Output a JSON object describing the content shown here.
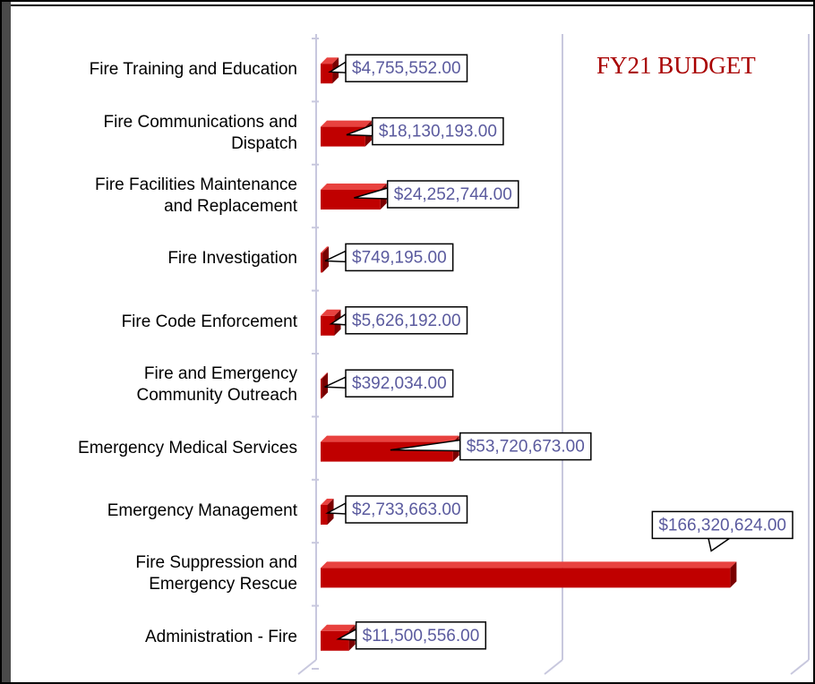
{
  "chart_data": {
    "type": "barh",
    "annotation": "FY21 BUDGET",
    "categories": [
      "Fire Training and Education",
      "Fire Communications and\nDispatch",
      "Fire Facilities Maintenance\nand Replacement",
      "Fire Investigation",
      "Fire Code Enforcement",
      "Fire and Emergency\nCommunity Outreach",
      "Emergency Medical Services",
      "Emergency Management",
      "Fire Suppression and\nEmergency Rescue",
      "Administration - Fire"
    ],
    "values": [
      4755552,
      18130193,
      24252744,
      749195,
      5626192,
      392034,
      53720673,
      2733663,
      166320624,
      11500556
    ],
    "value_labels": [
      "$4,755,552.00",
      "$18,130,193.00",
      "$24,252,744.00",
      "$749,195.00",
      "$5,626,192.00",
      "$392,034.00",
      "$53,720,673.00",
      "$2,733,663.00",
      "$166,320,624.00",
      "$11,500,556.00"
    ],
    "color": "#c00000",
    "xlim": [
      0,
      200000000
    ],
    "xticks": [
      0,
      100000000,
      200000000
    ],
    "grid": true
  }
}
